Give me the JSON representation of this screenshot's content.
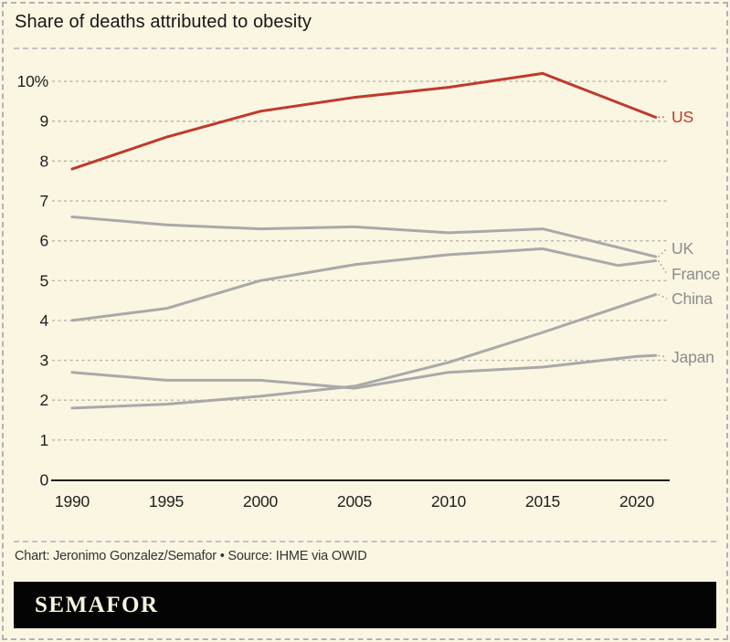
{
  "page": {
    "background": "#faf6e2",
    "border_color": "#b3b3b3"
  },
  "header": {
    "title": "Share of deaths attributed to obesity"
  },
  "chart_data": {
    "type": "line",
    "title": "Share of deaths attributed to obesity",
    "unit": "%",
    "x_range": [
      1990,
      2021
    ],
    "ylim": [
      0,
      10.5
    ],
    "grid": "horizontal-dashed",
    "legend_position": "end-of-line-labels",
    "x_ticks": [
      1990,
      1995,
      2000,
      2005,
      2010,
      2015,
      2020
    ],
    "y_ticks": [
      {
        "value": 0,
        "label": "0"
      },
      {
        "value": 1,
        "label": "1"
      },
      {
        "value": 2,
        "label": "2"
      },
      {
        "value": 3,
        "label": "3"
      },
      {
        "value": 4,
        "label": "4"
      },
      {
        "value": 5,
        "label": "5"
      },
      {
        "value": 6,
        "label": "6"
      },
      {
        "value": 7,
        "label": "7"
      },
      {
        "value": 8,
        "label": "8"
      },
      {
        "value": 9,
        "label": "9"
      },
      {
        "value": 10,
        "label": "10%"
      }
    ],
    "colors": {
      "accent_red": "#c03a2b",
      "line_gray": "#a9a9a9",
      "label_gray": "#8c8c8c",
      "grid_gray": "#b8b5a9",
      "axis_black": "#1f1f1f"
    },
    "series": [
      {
        "name": "US",
        "color": "#c03a2b",
        "label_color": "#c03a2b",
        "points": [
          [
            1990,
            7.8
          ],
          [
            1995,
            8.6
          ],
          [
            2000,
            9.25
          ],
          [
            2005,
            9.6
          ],
          [
            2010,
            9.85
          ],
          [
            2015,
            10.2
          ],
          [
            2021,
            9.1
          ]
        ]
      },
      {
        "name": "UK",
        "color": "#a9a9a9",
        "label_color": "#8c8c8c",
        "points": [
          [
            1990,
            6.6
          ],
          [
            1995,
            6.4
          ],
          [
            2000,
            6.3
          ],
          [
            2005,
            6.35
          ],
          [
            2010,
            6.2
          ],
          [
            2015,
            6.3
          ],
          [
            2021,
            5.6
          ]
        ]
      },
      {
        "name": "France",
        "color": "#a9a9a9",
        "label_color": "#8c8c8c",
        "points": [
          [
            1990,
            4.0
          ],
          [
            1995,
            4.3
          ],
          [
            2000,
            5.0
          ],
          [
            2005,
            5.4
          ],
          [
            2010,
            5.65
          ],
          [
            2015,
            5.8
          ],
          [
            2019,
            5.38
          ],
          [
            2021,
            5.5
          ]
        ]
      },
      {
        "name": "China",
        "color": "#a9a9a9",
        "label_color": "#8c8c8c",
        "points": [
          [
            1990,
            1.8
          ],
          [
            1995,
            1.9
          ],
          [
            2000,
            2.1
          ],
          [
            2005,
            2.35
          ],
          [
            2010,
            2.95
          ],
          [
            2015,
            3.7
          ],
          [
            2021,
            4.65
          ]
        ]
      },
      {
        "name": "Japan",
        "color": "#a9a9a9",
        "label_color": "#8c8c8c",
        "points": [
          [
            1990,
            2.7
          ],
          [
            1995,
            2.5
          ],
          [
            2000,
            2.5
          ],
          [
            2005,
            2.3
          ],
          [
            2010,
            2.7
          ],
          [
            2015,
            2.83
          ],
          [
            2020,
            3.1
          ],
          [
            2021,
            3.12
          ]
        ]
      }
    ]
  },
  "footer": {
    "credit": "Chart: Jeronimo Gonzalez/Semafor • Source: IHME via OWID",
    "logo_text": "SEMAFOR"
  }
}
